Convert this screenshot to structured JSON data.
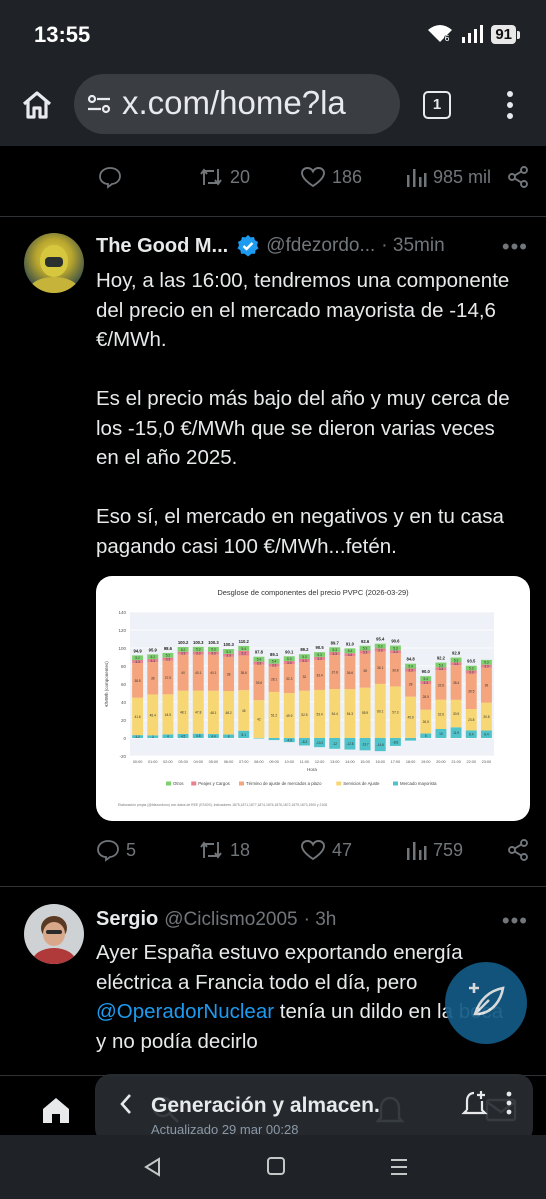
{
  "status_bar": {
    "time": "13:55",
    "battery": "91"
  },
  "browser": {
    "url": "x.com/home?la",
    "tab_count": "1"
  },
  "top_tweet_actions": {
    "reposts": "20",
    "likes": "186",
    "views": "985 mil"
  },
  "tweet1": {
    "name": "The Good M...",
    "handle": "@fdezordo...",
    "time": "· 35min",
    "paragraphs": [
      "Hoy, a las 16:00, tendremos una componente del precio en el mercado mayorista de -14,6 €/MWh.",
      "Es el precio más bajo del año y muy cerca de los -15,0 €/MWh que se dieron varias veces en el año 2025.",
      "Eso sí, el mercado en negativos y en tu casa pagando casi 100 €/MWh...fetén."
    ],
    "actions": {
      "replies": "5",
      "reposts": "18",
      "likes": "47",
      "views": "759"
    }
  },
  "tweet2": {
    "name": "Sergio",
    "handle": "@Ciclismo2005",
    "time": "· 3h",
    "text_before": "Ayer España estuvo exportando energía eléctrica a Francia todo el día, pero ",
    "mention": "@OperadorNuclear",
    "text_after": " tenía un dildo en la boca y no podía decirlo"
  },
  "bubble": {
    "title": "Generación y almacen.",
    "subtitle": "Actualizado 29 mar 00:28"
  },
  "icons": {
    "home": "home-icon",
    "site_settings": "site-settings-icon",
    "tabs": "tabs-icon",
    "menu": "more-vert-icon",
    "reply": "reply-icon",
    "repost": "repost-icon",
    "like": "heart-icon",
    "views": "views-icon",
    "share": "share-icon",
    "verified": "verified-badge-icon",
    "compose": "compose-icon",
    "search": "search-icon",
    "bell": "bell-icon",
    "mail": "mail-icon"
  },
  "colors": {
    "accent": "#1d9bf0",
    "muted": "#71767b",
    "background": "#000000",
    "text": "#e7e9ea"
  },
  "chart_data": {
    "type": "bar",
    "title": "Desglose de componentes del precio PVPC (2026-03-29)",
    "ylabel": "€/MWh (componentes)",
    "xlabel": "Hora",
    "ylim": [
      -20,
      140
    ],
    "yticks": [
      "140",
      "120",
      "100",
      "80",
      "60",
      "40",
      "20",
      "0",
      "-20"
    ],
    "categories": [
      "00:00",
      "01:00",
      "02:00",
      "03:00",
      "04:00",
      "05:00",
      "06:00",
      "07:00",
      "08:00",
      "09:00",
      "10:00",
      "11:00",
      "12:00",
      "13:00",
      "14:00",
      "15:00",
      "16:00",
      "17:00",
      "18:00",
      "19:00",
      "20:00",
      "21:00",
      "22:00",
      "23:00"
    ],
    "totals": [
      "94.9",
      "95.9",
      "98.6",
      "100.2",
      "100.3",
      "100.3",
      "100.3",
      "110.2",
      "97.8",
      "89.1",
      "90.1",
      "89.2",
      "90.5",
      "89.7",
      "91.0",
      "92.6",
      "95.4",
      "90.6",
      "84.8",
      "90.0",
      "92.2",
      "92.9",
      "93.5",
      ""
    ],
    "series": [
      {
        "name": "Mercado mayorista",
        "color": "#4fc3c9",
        "values": [
          3.2,
          3.0,
          4.0,
          4.5,
          4.8,
          4.4,
          4.0,
          8.1,
          -0.2,
          -2.3,
          -4.6,
          -8.3,
          -10.2,
          -12.0,
          -12.8,
          -13.7,
          -14.6,
          -8.8,
          -2.9,
          5.0,
          10.0,
          11.9,
          8.4,
          8.4
        ]
      },
      {
        "name": "Servicios de Ajuste",
        "color": "#f7d774",
        "values": [
          41.6,
          45.4,
          44.5,
          48.1,
          47.8,
          48.1,
          48.2,
          45.0,
          42.0,
          51.2,
          49.9,
          52.5,
          53.4,
          54.4,
          54.3,
          55.9,
          60.1,
          57.3,
          45.9,
          26.5,
          32.6,
          30.5,
          23.8,
          30.8
        ]
      },
      {
        "name": "Término de ajuste de mercados a plazo",
        "color": "#f4a57d",
        "values": [
          38.5,
          36.0,
          37.5,
          40.0,
          40.1,
          40.1,
          38.0,
          38.6,
          39.6,
          28.1,
          32.3,
          32.0,
          33.4,
          37.8,
          36.6,
          38.0,
          36.1,
          36.8,
          28.0,
          28.5,
          32.6,
          38.4,
          39.5,
          39.0
        ]
      },
      {
        "name": "Peajes y Cargos",
        "color": "#e97f8f",
        "values": [
          3.3,
          3.3,
          3.3,
          3.3,
          3.3,
          3.3,
          3.3,
          5.2,
          3.3,
          3.3,
          3.3,
          3.3,
          3.3,
          3.3,
          3.3,
          3.3,
          3.3,
          3.3,
          3.3,
          3.3,
          3.3,
          3.3,
          3.3,
          3.3
        ]
      },
      {
        "name": "Otros",
        "color": "#7ecf6e",
        "values": [
          5.2,
          5.2,
          5.2,
          5.2,
          5.3,
          5.3,
          5.3,
          5.4,
          5.4,
          5.4,
          5.3,
          5.3,
          5.3,
          5.3,
          5.4,
          5.3,
          5.3,
          5.3,
          5.4,
          5.4,
          5.3,
          5.3,
          5.3,
          5.3
        ]
      }
    ],
    "footer": "Elaboración propia (@fdezordono) con datos de REE (ESIOS). Indicadores 1875,1871,1877,1874,1876,1876,1872,1879,1873,1900 y 2108",
    "legend_position": "bottom"
  }
}
